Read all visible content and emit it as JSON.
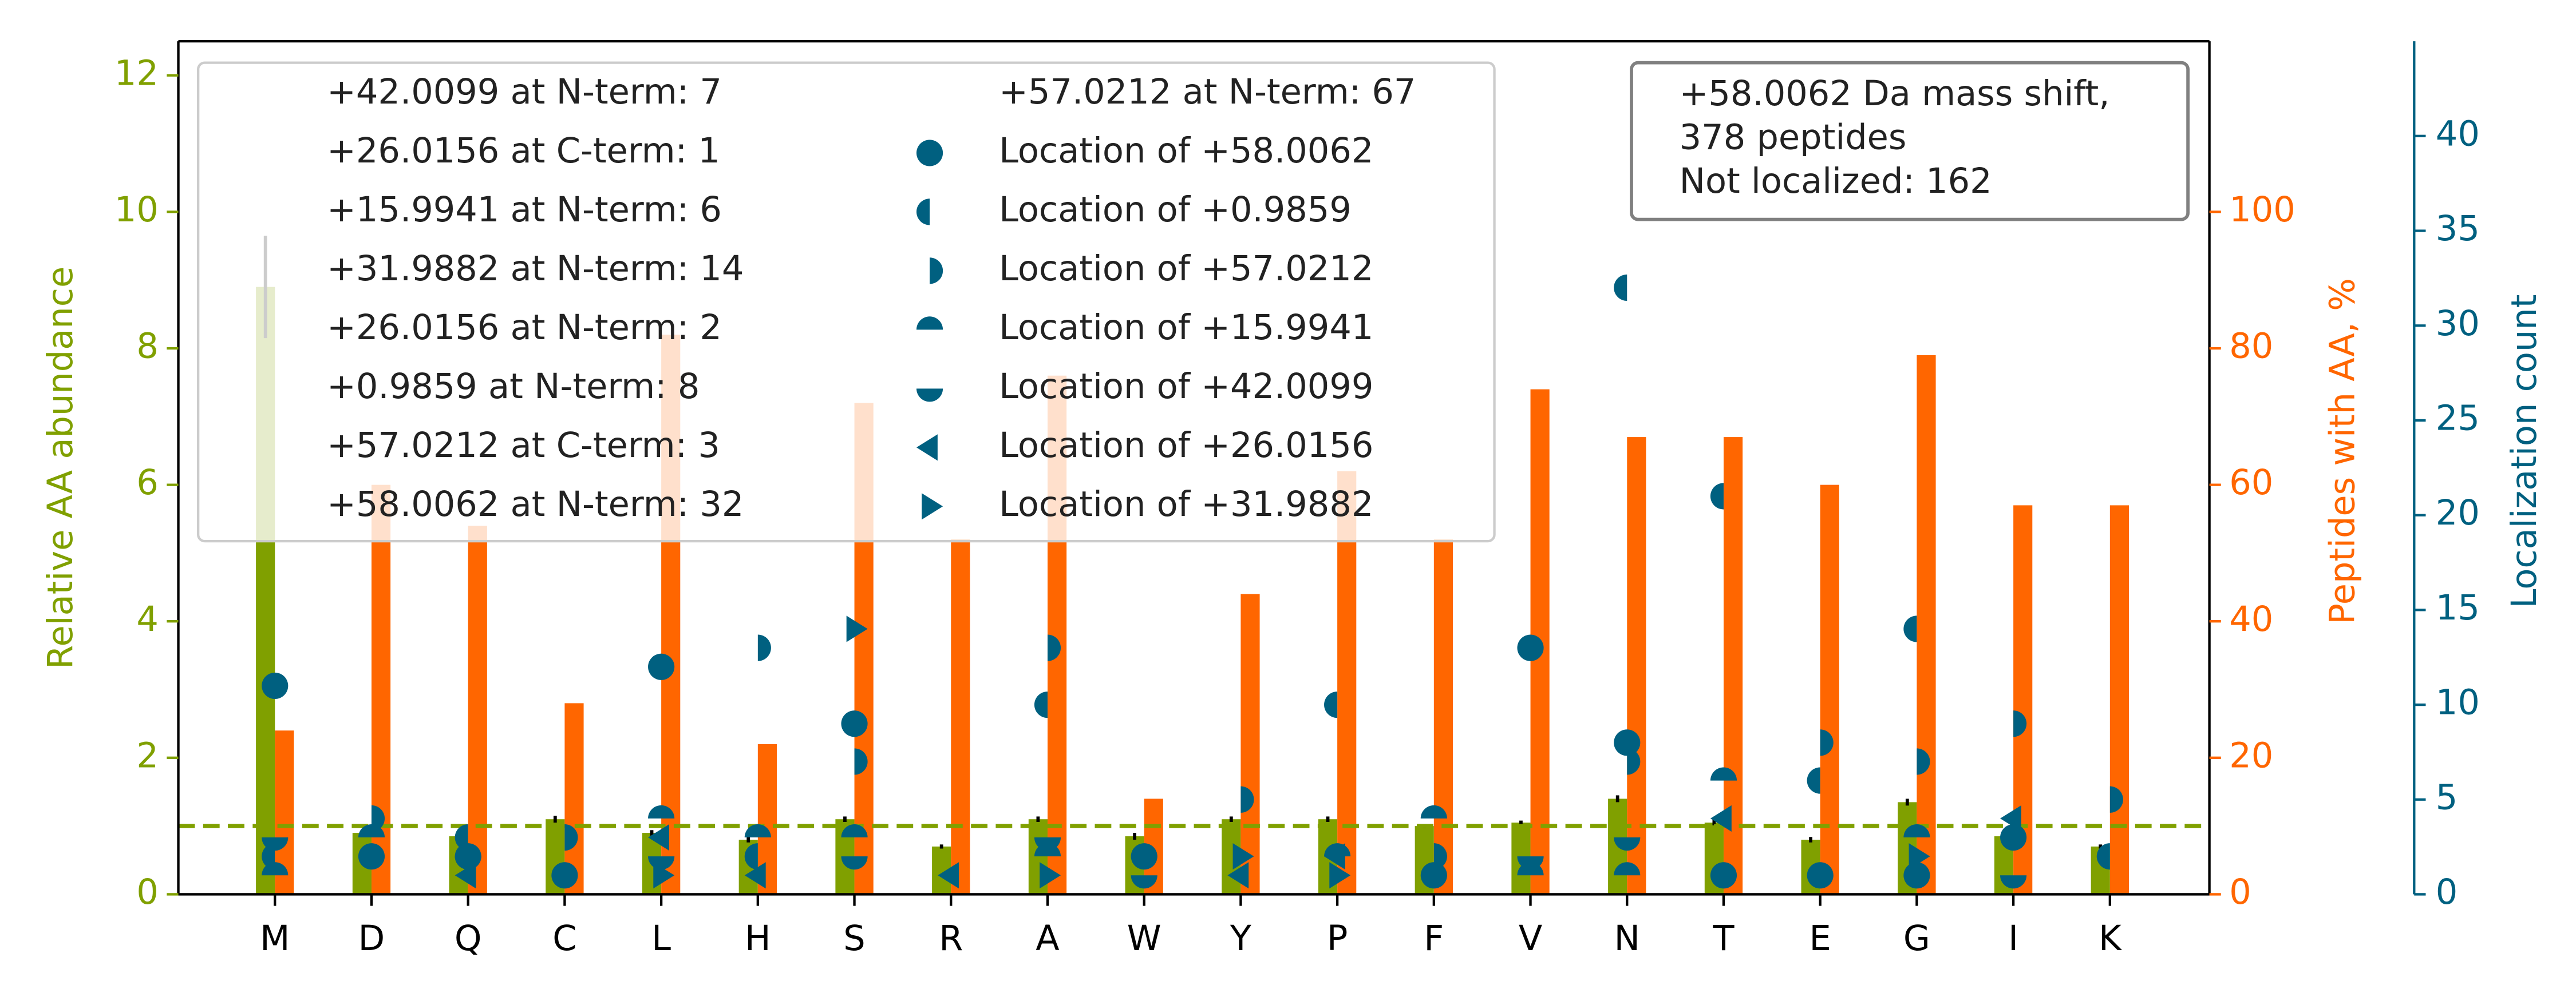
{
  "chart_data": {
    "type": "bar",
    "categories": [
      "M",
      "D",
      "Q",
      "C",
      "L",
      "H",
      "S",
      "R",
      "A",
      "W",
      "Y",
      "P",
      "F",
      "V",
      "N",
      "T",
      "E",
      "G",
      "I",
      "K"
    ],
    "ylabel": "Relative AA abundance",
    "y2label": "Peptides with AA, %",
    "y3label": "Localization count",
    "ylim": [
      0,
      12.5
    ],
    "yticks": [
      0,
      2,
      4,
      6,
      8,
      10,
      12
    ],
    "ycolor": "#80a000",
    "y2lim": [
      0,
      125
    ],
    "y2ticks": [
      0,
      20,
      40,
      60,
      80,
      100
    ],
    "y2color": "#ff6600",
    "y3lim": [
      0,
      45
    ],
    "y3ticks": [
      0,
      5,
      10,
      15,
      20,
      25,
      30,
      35,
      40
    ],
    "y3color": "#006080",
    "series": [
      {
        "color": "#80a000",
        "axis": "y",
        "values": [
          8.9,
          0.9,
          0.85,
          1.1,
          0.9,
          0.8,
          1.1,
          0.7,
          1.1,
          0.85,
          1.1,
          1.1,
          1.0,
          1.05,
          1.4,
          1.05,
          0.8,
          1.35,
          0.85,
          0.7
        ],
        "errors": [
          0.75,
          0.04,
          0.04,
          0.05,
          0.04,
          0.04,
          0.04,
          0.03,
          0.04,
          0.05,
          0.04,
          0.04,
          0.03,
          0.03,
          0.05,
          0.04,
          0.04,
          0.05,
          0.04,
          0.03
        ]
      },
      {
        "color": "#ff6600",
        "axis": "y2",
        "values": [
          24,
          60,
          54,
          28,
          82,
          22,
          72,
          52,
          76,
          14,
          44,
          62,
          52,
          74,
          67,
          67,
          60,
          79,
          57,
          57
        ]
      },
      {
        "name": "Location of +58.0062",
        "marker": "circle",
        "color": "#006080",
        "axis": "y3",
        "values": [
          11,
          2,
          2,
          1,
          12,
          null,
          9,
          null,
          null,
          2,
          null,
          null,
          1,
          13,
          8,
          1,
          1,
          1,
          3,
          null
        ]
      },
      {
        "name": "Location of +0.9859",
        "marker": "left-half",
        "color": "#006080",
        "axis": "y3",
        "values": [
          2,
          null,
          3,
          null,
          null,
          2,
          null,
          null,
          10,
          null,
          null,
          10,
          null,
          null,
          32,
          21,
          6,
          14,
          null,
          2
        ]
      },
      {
        "name": "Location of +57.0212",
        "marker": "right-half",
        "color": "#006080",
        "axis": "y3",
        "values": [
          null,
          4,
          null,
          3,
          null,
          13,
          7,
          null,
          13,
          null,
          5,
          null,
          2,
          null,
          7,
          null,
          8,
          7,
          9,
          5
        ]
      },
      {
        "name": "Location of +15.9941",
        "marker": "top-half",
        "color": "#006080",
        "axis": "y3",
        "values": [
          1,
          3,
          null,
          null,
          4,
          3,
          3,
          null,
          2,
          null,
          null,
          2,
          4,
          1,
          1,
          6,
          null,
          3,
          null,
          null
        ]
      },
      {
        "name": "Location of +42.0099",
        "marker": "bottom-half",
        "color": "#006080",
        "axis": "y3",
        "values": [
          3,
          null,
          2,
          null,
          2,
          null,
          2,
          null,
          3,
          1,
          null,
          null,
          null,
          2,
          3,
          null,
          null,
          null,
          1,
          null
        ]
      },
      {
        "name": "Location of +26.0156",
        "marker": "triangle-left",
        "color": "#006080",
        "axis": "y3",
        "values": [
          null,
          null,
          1,
          null,
          3,
          1,
          null,
          1,
          null,
          null,
          1,
          2,
          null,
          null,
          null,
          4,
          null,
          null,
          4,
          null
        ]
      },
      {
        "name": "Location of +31.9882",
        "marker": "triangle-right",
        "color": "#006080",
        "axis": "y3",
        "values": [
          null,
          null,
          null,
          null,
          1,
          null,
          14,
          null,
          1,
          null,
          2,
          1,
          null,
          null,
          null,
          null,
          null,
          2,
          null,
          null
        ]
      }
    ],
    "reference_line": {
      "value": 1,
      "color": "#80a000",
      "style": "dashed"
    },
    "legend_notes": [
      "+42.0099 at N-term: 7",
      "+26.0156 at C-term: 1",
      "+15.9941 at N-term: 6",
      "+31.9882 at N-term: 14",
      "+26.0156 at N-term: 2",
      "+0.9859 at N-term: 8",
      "+57.0212 at C-term: 3",
      "+58.0062 at N-term: 32",
      "+57.0212 at N-term: 67"
    ],
    "annotation": [
      "+58.0062 Da mass shift,",
      "378 peptides",
      "Not localized: 162"
    ]
  }
}
